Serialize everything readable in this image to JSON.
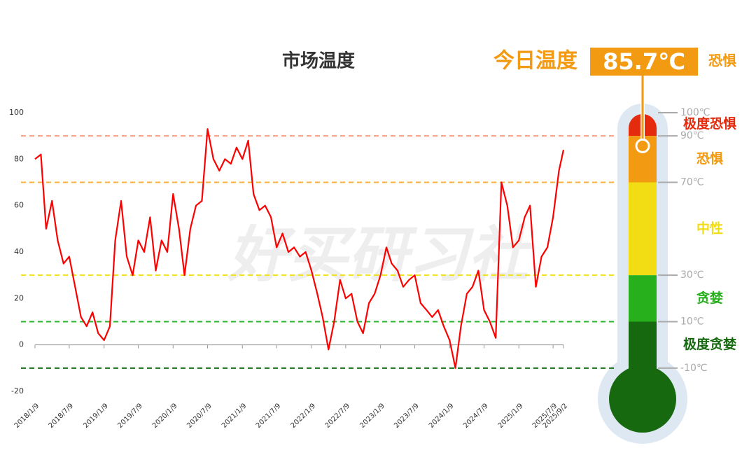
{
  "chart_data": {
    "type": "line",
    "title": "市场温度",
    "x": [
      "2018/1/9",
      "2018/2/9",
      "2018/3/9",
      "2018/4/9",
      "2018/5/9",
      "2018/6/9",
      "2018/7/9",
      "2018/8/9",
      "2018/9/9",
      "2018/10/9",
      "2018/11/9",
      "2018/12/9",
      "2019/1/9",
      "2019/2/9",
      "2019/3/9",
      "2019/4/9",
      "2019/5/9",
      "2019/6/9",
      "2019/7/9",
      "2019/8/9",
      "2019/9/9",
      "2019/10/9",
      "2019/11/9",
      "2019/12/9",
      "2020/1/9",
      "2020/2/9",
      "2020/3/9",
      "2020/4/9",
      "2020/5/9",
      "2020/6/9",
      "2020/7/9",
      "2020/8/9",
      "2020/9/9",
      "2020/10/9",
      "2020/11/9",
      "2020/12/9",
      "2021/1/9",
      "2021/2/9",
      "2021/3/9",
      "2021/4/9",
      "2021/5/9",
      "2021/6/9",
      "2021/7/9",
      "2021/8/9",
      "2021/9/9",
      "2021/10/9",
      "2021/11/9",
      "2021/12/9",
      "2022/1/9",
      "2022/2/9",
      "2022/3/9",
      "2022/4/9",
      "2022/5/9",
      "2022/6/9",
      "2022/7/9",
      "2022/8/9",
      "2022/9/9",
      "2022/10/9",
      "2022/11/9",
      "2022/12/9",
      "2023/1/9",
      "2023/2/9",
      "2023/3/9",
      "2023/4/9",
      "2023/5/9",
      "2023/6/9",
      "2023/7/9",
      "2023/8/9",
      "2023/9/9",
      "2023/10/9",
      "2023/11/9",
      "2023/12/9",
      "2024/1/9",
      "2024/2/9",
      "2024/3/9",
      "2024/4/9",
      "2024/5/9",
      "2024/6/9",
      "2024/7/9",
      "2024/8/9",
      "2024/9/9",
      "2024/10/9",
      "2024/11/9",
      "2024/12/9",
      "2025/1/9",
      "2025/2/9",
      "2025/3/9",
      "2025/4/9",
      "2025/5/9",
      "2025/6/9",
      "2025/7/9",
      "2025/8/9",
      "2025/9/2"
    ],
    "series": [
      {
        "color": "#ff0000",
        "values": [
          80,
          82,
          50,
          62,
          45,
          35,
          38,
          25,
          12,
          8,
          14,
          5,
          2,
          8,
          45,
          62,
          38,
          30,
          45,
          40,
          55,
          32,
          45,
          40,
          65,
          50,
          30,
          50,
          60,
          62,
          93,
          80,
          75,
          80,
          78,
          85,
          80,
          88,
          65,
          58,
          60,
          55,
          42,
          48,
          40,
          42,
          38,
          40,
          32,
          22,
          12,
          -2,
          10,
          28,
          20,
          22,
          10,
          5,
          18,
          22,
          30,
          42,
          35,
          32,
          25,
          28,
          30,
          18,
          15,
          12,
          15,
          8,
          2,
          -10,
          8,
          22,
          25,
          32,
          15,
          10,
          3,
          70,
          60,
          42,
          45,
          55,
          60,
          25,
          38,
          42,
          55,
          75,
          84
        ]
      }
    ],
    "xlim": [
      "2018/1/9",
      "2025/9/2"
    ],
    "xticks": [
      "2018/1/9",
      "2018/7/9",
      "2019/1/9",
      "2019/7/9",
      "2020/1/9",
      "2020/7/9",
      "2021/1/9",
      "2021/7/9",
      "2022/1/9",
      "2022/7/9",
      "2023/1/9",
      "2023/7/9",
      "2024/1/9",
      "2024/7/9",
      "2025/1/9",
      "2025/7/9",
      "2025/9/2"
    ],
    "ylim": [
      -20,
      100
    ],
    "yticks": [
      -20,
      0,
      20,
      40,
      60,
      80,
      100
    ],
    "reference_lines": [
      {
        "value": 90,
        "color": "#f0a080"
      },
      {
        "value": 70,
        "color": "#f5b040"
      },
      {
        "value": 30,
        "color": "#eee020"
      },
      {
        "value": 10,
        "color": "#30b030"
      },
      {
        "value": -10,
        "color": "#1a6e1a"
      }
    ]
  },
  "thermometer": {
    "label": "今日温度",
    "value": 85.7,
    "value_label": "85.7℃",
    "status": "恐惧",
    "scale": [
      {
        "value": 100,
        "label": "100℃"
      },
      {
        "value": 90,
        "label": "90℃"
      },
      {
        "value": 70,
        "label": "70℃"
      },
      {
        "value": 30,
        "label": "30℃"
      },
      {
        "value": 10,
        "label": "10℃"
      },
      {
        "value": -10,
        "label": "-10℃"
      }
    ],
    "zones": [
      {
        "name": "极度恐惧",
        "from": 90,
        "to": 100,
        "color": "#e52b0e"
      },
      {
        "name": "恐惧",
        "from": 70,
        "to": 90,
        "color": "#f29a12"
      },
      {
        "name": "中性",
        "from": 30,
        "to": 70,
        "color": "#f2dc14"
      },
      {
        "name": "贪婪",
        "from": 10,
        "to": 30,
        "color": "#27b01b"
      },
      {
        "name": "极度贪婪",
        "from": -10,
        "to": 10,
        "color": "#17690f"
      }
    ]
  },
  "watermark": "好买研习社"
}
